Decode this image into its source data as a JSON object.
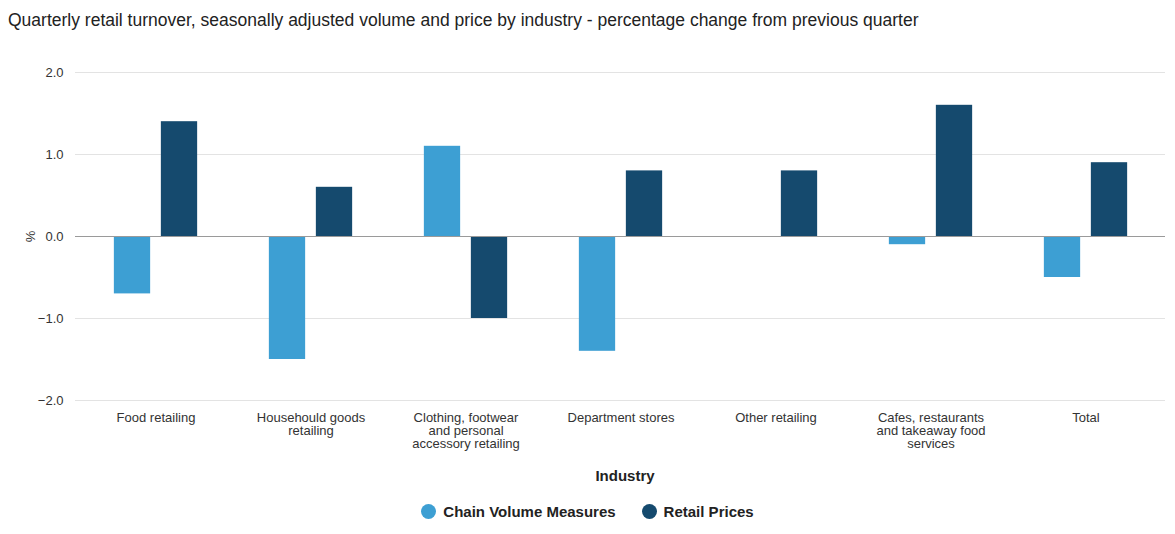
{
  "chart_data": {
    "type": "bar",
    "title": "Quarterly retail turnover, seasonally adjusted volume and price by industry - percentage change from previous quarter",
    "x_label": "Industry",
    "y_label": "%",
    "categories": [
      "Food retailing",
      "Househould goods retailing",
      "Clothing, footwear and personal accessory retailing",
      "Department stores",
      "Other retailing",
      "Cafes, restaurants and takeaway food services",
      "Total"
    ],
    "series": [
      {
        "name": "Chain Volume Measures",
        "color": "#3d9fd3",
        "values": [
          -0.7,
          -1.5,
          1.1,
          -1.4,
          0.0,
          -0.1,
          -0.5
        ]
      },
      {
        "name": "Retail Prices",
        "color": "#154a6e",
        "values": [
          1.4,
          0.6,
          -1.0,
          0.8,
          0.8,
          1.6,
          0.9
        ]
      }
    ],
    "ylim": [
      -2,
      2
    ],
    "yticks": [
      -2,
      -1,
      0,
      1,
      2
    ],
    "grid": true,
    "legend": "bottom"
  }
}
